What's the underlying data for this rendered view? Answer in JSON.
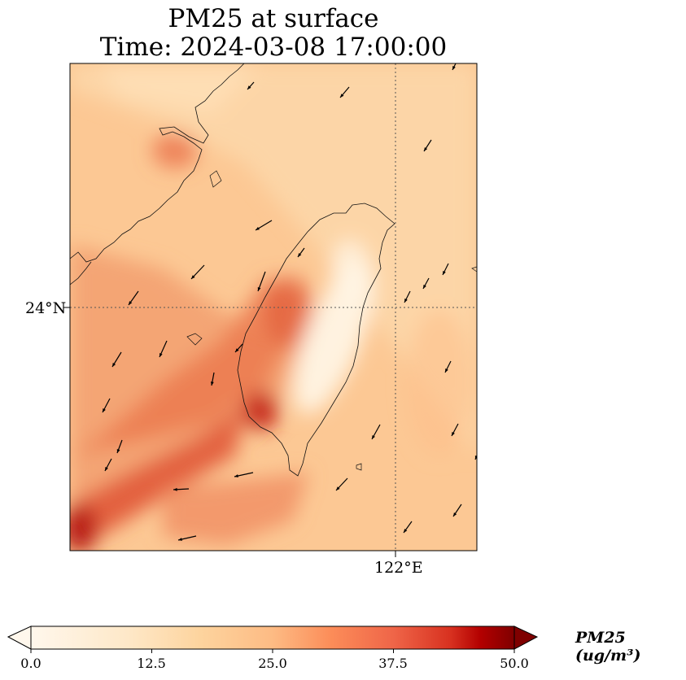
{
  "title": {
    "line1": "PM25 at surface",
    "line2": "Time: 2024-03-08 17:00:00"
  },
  "axes": {
    "lat_label": "24°N",
    "lon_label": "122°E"
  },
  "colorbar": {
    "ticks": [
      "0.0",
      "12.5",
      "25.0",
      "37.5",
      "50.0"
    ],
    "label": "PM25 (ug/m³)",
    "range": [
      0,
      50
    ],
    "colormap": "OrRd",
    "extend": "both"
  },
  "colors": {
    "low": "#fff7ec",
    "mid": "#fdbb84",
    "high": "#e34a33",
    "max": "#7f0000"
  }
}
